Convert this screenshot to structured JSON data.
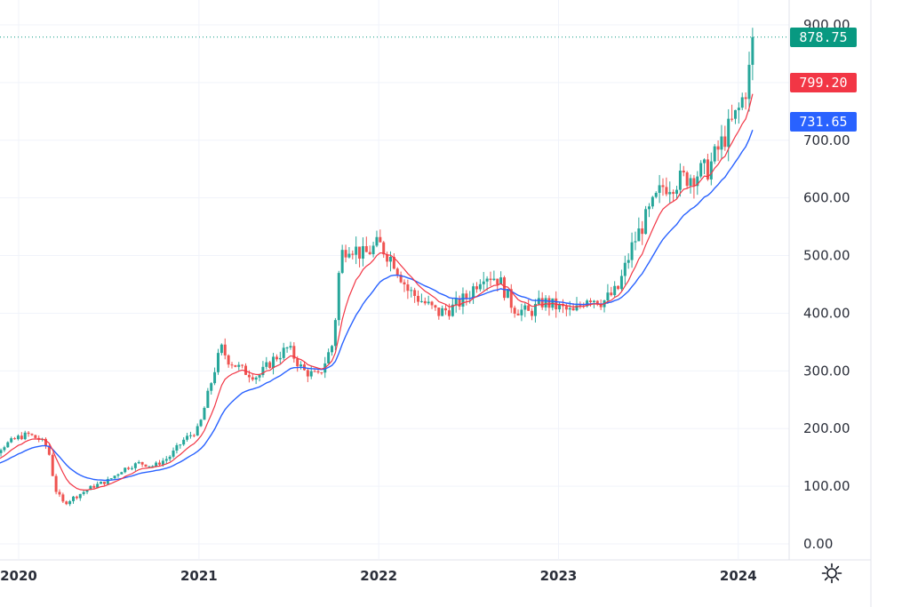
{
  "chart_data": {
    "type": "candlestick",
    "price_axis": {
      "ticks": [
        0,
        100,
        200,
        300,
        400,
        500,
        600,
        700,
        800,
        900
      ],
      "tick_labels": [
        "0.00",
        "100.00",
        "200.00",
        "300.00",
        "400.00",
        "500.00",
        "600.00",
        "700.00",
        "",
        "900.00"
      ],
      "range": [
        0,
        900
      ]
    },
    "time_axis": {
      "labels": [
        "2020",
        "2021",
        "2022",
        "2023",
        "2024"
      ],
      "range": [
        "2019-10-01",
        "2024-04-15"
      ]
    },
    "grid": true,
    "colors": {
      "up": "#26a69a",
      "down": "#ef5350",
      "ma_fast": "#f23645",
      "ma_slow": "#2962ff",
      "last_price": "#089981"
    },
    "last_price": {
      "label": "878.75",
      "value": 878.75,
      "color": "#089981"
    },
    "indicator_badges": [
      {
        "label": "799.20",
        "value": 799.2,
        "color": "#f23645"
      },
      {
        "label": "731.65",
        "value": 731.65,
        "color": "#2962ff"
      }
    ],
    "approx_close": {
      "dates": [
        "2019-10-01",
        "2019-11-01",
        "2019-12-01",
        "2020-01-01",
        "2020-01-20",
        "2020-02-15",
        "2020-03-01",
        "2020-03-15",
        "2020-04-01",
        "2020-05-01",
        "2020-06-01",
        "2020-07-01",
        "2020-08-01",
        "2020-09-01",
        "2020-10-01",
        "2020-11-01",
        "2020-12-01",
        "2021-01-01",
        "2021-02-01",
        "2021-02-15",
        "2021-03-01",
        "2021-04-01",
        "2021-05-01",
        "2021-06-01",
        "2021-07-01",
        "2021-08-01",
        "2021-09-01",
        "2021-10-01",
        "2021-10-15",
        "2021-11-01",
        "2021-12-01",
        "2022-01-01",
        "2022-02-01",
        "2022-03-01",
        "2022-04-01",
        "2022-05-01",
        "2022-06-01",
        "2022-07-01",
        "2022-08-01",
        "2022-09-01",
        "2022-10-01",
        "2022-11-01",
        "2022-12-01",
        "2023-01-01",
        "2023-02-01",
        "2023-03-01",
        "2023-04-01",
        "2023-05-01",
        "2023-06-01",
        "2023-07-01",
        "2023-08-01",
        "2023-09-01",
        "2023-10-01",
        "2023-11-01",
        "2023-12-01",
        "2024-01-01",
        "2024-01-20",
        "2024-02-01"
      ],
      "values": [
        130,
        150,
        170,
        185,
        190,
        180,
        165,
        95,
        70,
        85,
        100,
        110,
        130,
        140,
        135,
        150,
        180,
        200,
        300,
        340,
        320,
        300,
        290,
        320,
        340,
        300,
        290,
        350,
        500,
        520,
        500,
        520,
        490,
        440,
        420,
        400,
        410,
        430,
        470,
        460,
        410,
        400,
        420,
        410,
        400,
        430,
        420,
        440,
        520,
        570,
        620,
        630,
        640,
        650,
        700,
        750,
        800,
        880
      ]
    }
  }
}
